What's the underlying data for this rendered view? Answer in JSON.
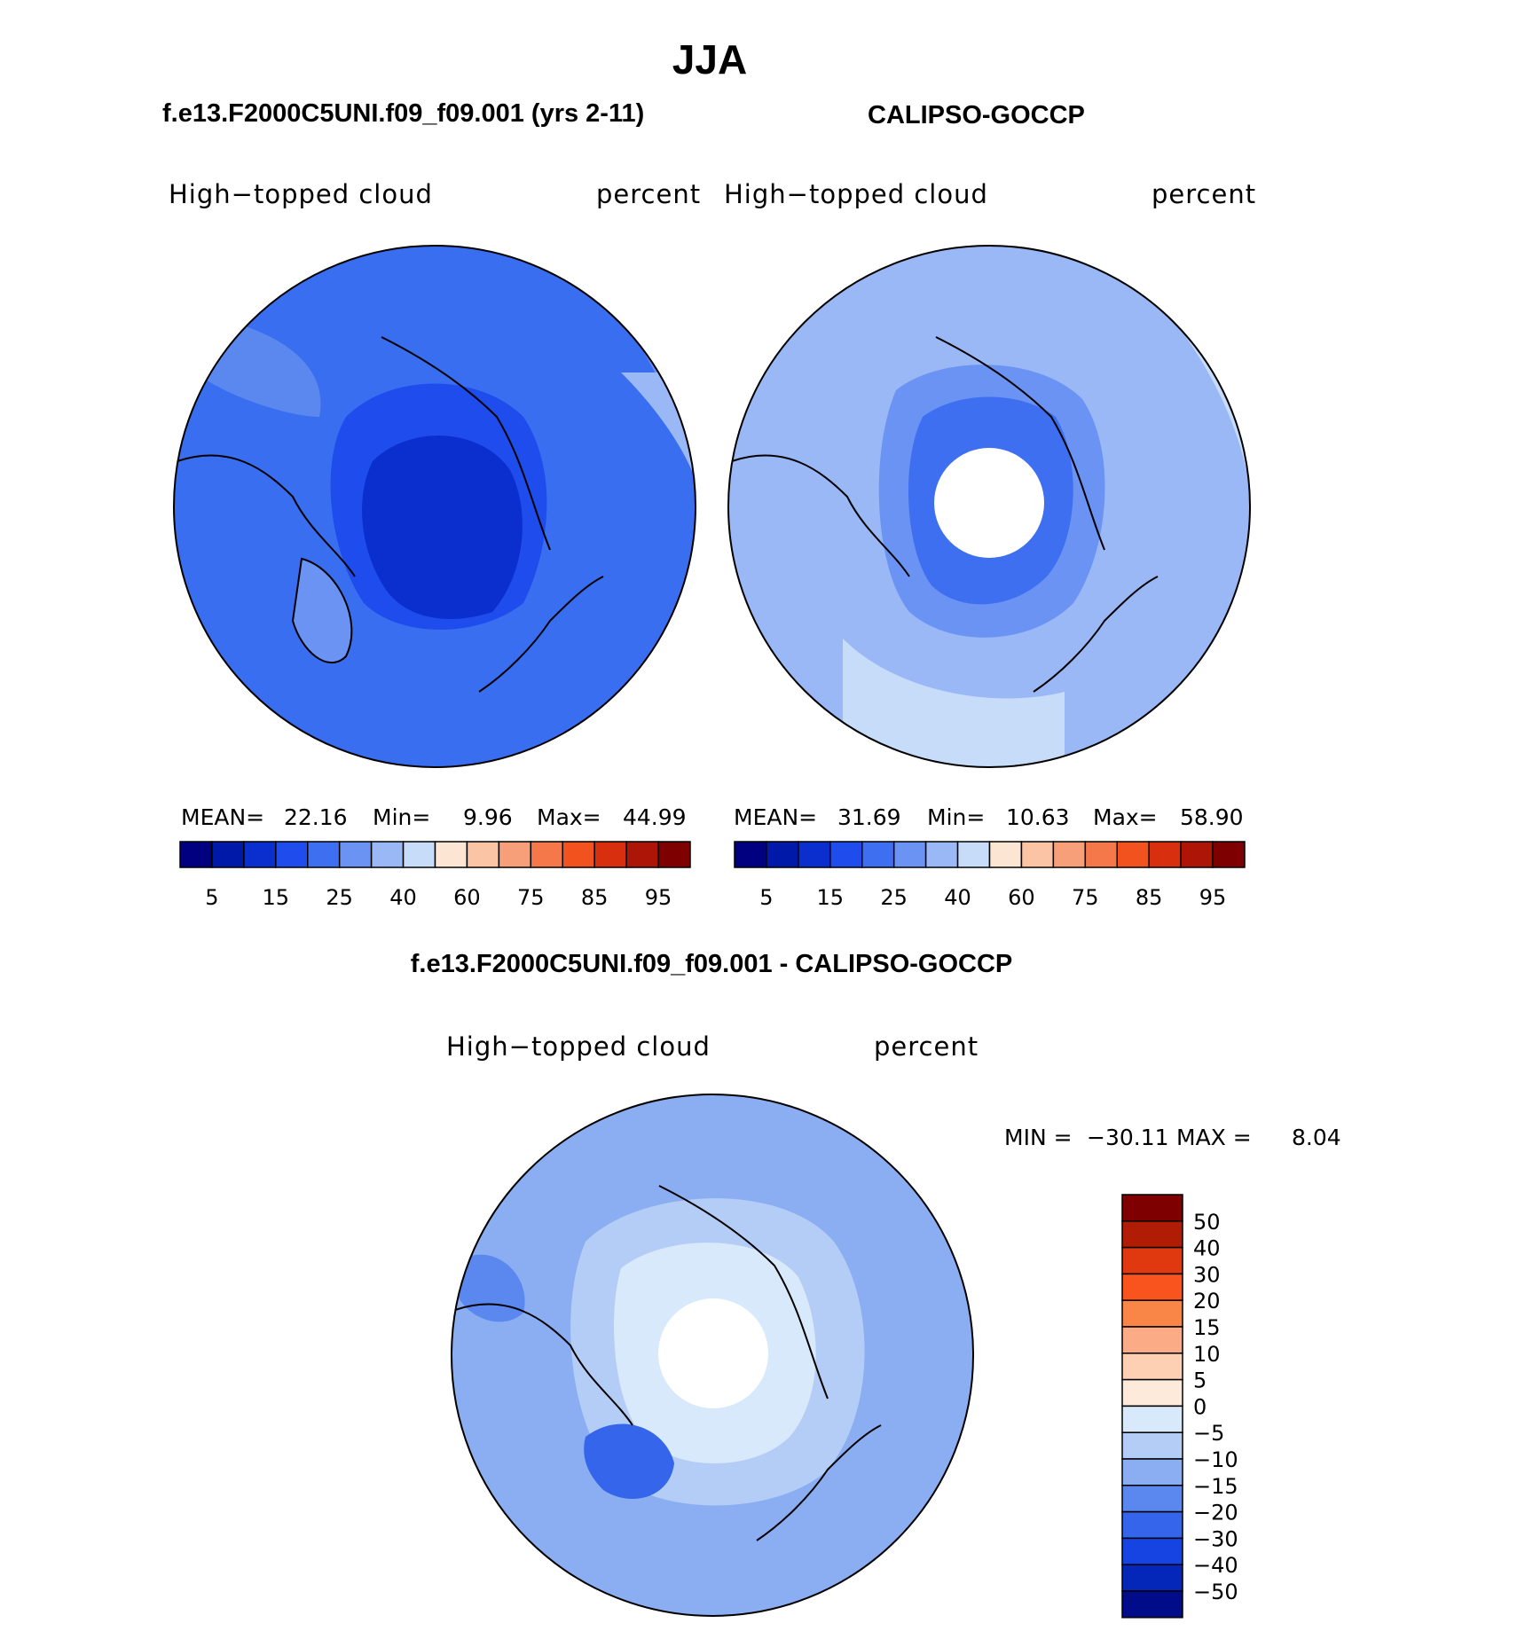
{
  "chart_data": {
    "type": "heatmap",
    "figure_title": "JJA",
    "panels": [
      {
        "id": "model",
        "header": "f.e13.F2000C5UNI.f09_f09.001 (yrs 2-11)",
        "variable": "High−topped cloud",
        "units": "percent",
        "projection": "north polar stereographic",
        "stats": {
          "mean_label": "MEAN=",
          "mean": "22.16",
          "min_label": "Min=",
          "min": "9.96",
          "max_label": "Max=",
          "max": "44.99"
        },
        "has_missing_pole": false
      },
      {
        "id": "obs",
        "header": "CALIPSO-GOCCP",
        "variable": "High−topped cloud",
        "units": "percent",
        "projection": "north polar stereographic",
        "stats": {
          "mean_label": "MEAN=",
          "mean": "31.69",
          "min_label": "Min=",
          "min": "10.63",
          "max_label": "Max=",
          "max": "58.90"
        },
        "has_missing_pole": true
      },
      {
        "id": "diff",
        "header": "f.e13.F2000C5UNI.f09_f09.001 - CALIPSO-GOCCP",
        "variable": "High−topped cloud",
        "units": "percent",
        "projection": "north polar stereographic",
        "stats": {
          "min_label": "MIN =",
          "min": "−30.11",
          "max_label": "MAX =",
          "max": "8.04"
        },
        "has_missing_pole": true
      }
    ],
    "abs_colorbar": {
      "tick_labels": [
        "5",
        "15",
        "25",
        "40",
        "60",
        "75",
        "85",
        "95"
      ],
      "colors": [
        "#000080",
        "#0019a8",
        "#0b2fcf",
        "#1f4cec",
        "#3d6ff0",
        "#6a93f3",
        "#9ab8f6",
        "#c6dcf9",
        "#fde5d3",
        "#fbc4a4",
        "#f79f78",
        "#f47849",
        "#f1521e",
        "#d8300f",
        "#ad1606",
        "#7f0000"
      ]
    },
    "diff_colorbar": {
      "tick_labels": [
        "50",
        "40",
        "30",
        "20",
        "15",
        "10",
        "5",
        "0",
        "−5",
        "−10",
        "−15",
        "−20",
        "−30",
        "−40",
        "−50"
      ],
      "colors": [
        "#7f0000",
        "#b01c04",
        "#e0380f",
        "#f9531e",
        "#f98647",
        "#fbac87",
        "#fdd0b4",
        "#fdeadb",
        "#d8e9fb",
        "#b4cdf6",
        "#8aaef1",
        "#5a88ee",
        "#3465ea",
        "#1544e3",
        "#0527b9",
        "#000c8a"
      ]
    }
  }
}
